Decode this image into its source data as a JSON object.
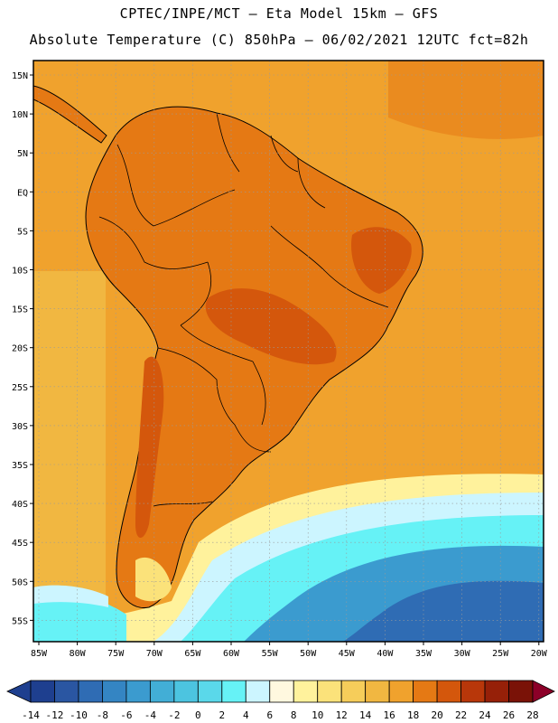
{
  "header": {
    "line1": "CPTEC/INPE/MCT —  Eta Model 15km — GFS",
    "line2": "Absolute Temperature (C) 850hPa — 06/02/2021 12UTC fct=82h"
  },
  "map": {
    "lat_labels": [
      "15N",
      "10N",
      "5N",
      "EQ",
      "5S",
      "10S",
      "15S",
      "20S",
      "25S",
      "30S",
      "35S",
      "40S",
      "45S",
      "50S",
      "55S"
    ],
    "lon_labels": [
      "85W",
      "80W",
      "75W",
      "70W",
      "65W",
      "60W",
      "55W",
      "50W",
      "45W",
      "40W",
      "35W",
      "30W",
      "25W",
      "20W"
    ],
    "continent_color": "#d8681c"
  },
  "colorbar": {
    "ticks": [
      "-14",
      "-12",
      "-10",
      "-8",
      "-6",
      "-4",
      "-2",
      "0",
      "2",
      "4",
      "6",
      "8",
      "10",
      "12",
      "14",
      "16",
      "18",
      "20",
      "22",
      "24",
      "26",
      "28"
    ],
    "colors": [
      "#1e3f8f",
      "#2a56a2",
      "#2f6cb4",
      "#3485c3",
      "#3b9bcf",
      "#42aed6",
      "#4cc4e0",
      "#5ad8ea",
      "#66f2f6",
      "#ccf5ff",
      "#fff8df",
      "#fff29c",
      "#fbe27a",
      "#f6cd5a",
      "#f1b741",
      "#f0a22d",
      "#e57914",
      "#d4570c",
      "#b8370a",
      "#962008",
      "#7a1207",
      "#8c0028"
    ]
  }
}
